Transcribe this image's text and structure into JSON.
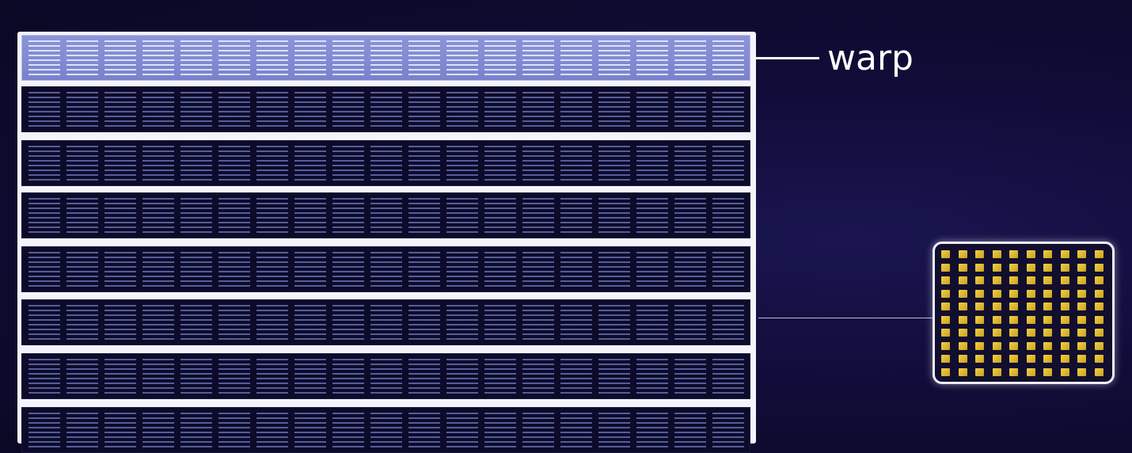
{
  "label": {
    "text": "warp"
  },
  "diagram": {
    "warp_rows_visible": 8,
    "highlighted_row_index": 0,
    "thread_columns_per_row": 19,
    "core_grid": {
      "columns": 10,
      "rows": 10
    },
    "colors": {
      "background": "#100c38",
      "highlight_row": "#8c94d8",
      "row_fill": "#0c0b2a",
      "thread_line": "#6e78be",
      "core_unit": "#f2d04a",
      "outline": "#ffffff"
    }
  }
}
